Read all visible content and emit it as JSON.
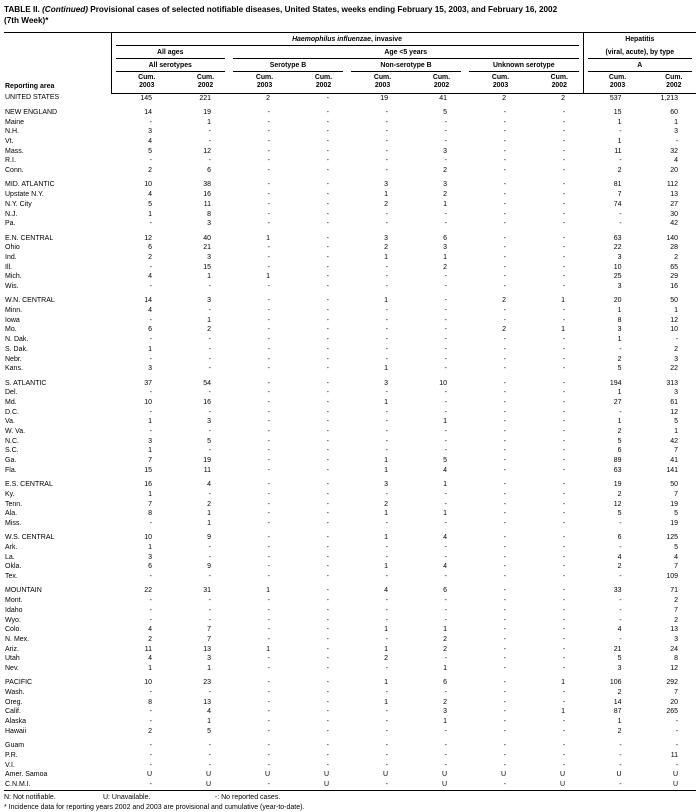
{
  "title": {
    "label": "TABLE II.",
    "continued": "(Continued)",
    "text": "Provisional cases of selected notifiable diseases, United States, weeks ending February 15, 2003, and February 16, 2002",
    "week": "(7th Week)*"
  },
  "header": {
    "reporting_area": "Reporting area",
    "hi_group_italic": "Haemophilus influenzae",
    "hi_group_rest": ", invasive",
    "hep_line1": "Hepatitis",
    "hep_line2": "(viral, acute), by type",
    "all_ages": "All ages",
    "age_under5": "Age <5 years",
    "all_serotypes": "All serotypes",
    "serotype_b": "Serotype B",
    "non_serotype_b": "Non-serotype B",
    "unknown_serotype": "Unknown serotype",
    "hep_a": "A",
    "cum": "Cum.",
    "year_2003": "2003",
    "year_2002": "2002"
  },
  "sections": [
    {
      "rows": [
        {
          "area": "UNITED STATES",
          "v": [
            "145",
            "221",
            "2",
            "-",
            "19",
            "41",
            "2",
            "2",
            "537",
            "1,213"
          ]
        }
      ]
    },
    {
      "rows": [
        {
          "area": "NEW ENGLAND",
          "v": [
            "14",
            "19",
            "-",
            "-",
            "-",
            "5",
            "-",
            "-",
            "15",
            "60"
          ]
        },
        {
          "area": "Maine",
          "v": [
            "-",
            "1",
            "-",
            "-",
            "-",
            "-",
            "-",
            "-",
            "1",
            "1"
          ]
        },
        {
          "area": "N.H.",
          "v": [
            "3",
            "-",
            "-",
            "-",
            "-",
            "-",
            "-",
            "-",
            "-",
            "3"
          ]
        },
        {
          "area": "Vt.",
          "v": [
            "4",
            "-",
            "-",
            "-",
            "-",
            "-",
            "-",
            "-",
            "1",
            "-"
          ]
        },
        {
          "area": "Mass.",
          "v": [
            "5",
            "12",
            "-",
            "-",
            "-",
            "3",
            "-",
            "-",
            "11",
            "32"
          ]
        },
        {
          "area": "R.I.",
          "v": [
            "-",
            "-",
            "-",
            "-",
            "-",
            "-",
            "-",
            "-",
            "-",
            "4"
          ]
        },
        {
          "area": "Conn.",
          "v": [
            "2",
            "6",
            "-",
            "-",
            "-",
            "2",
            "-",
            "-",
            "2",
            "20"
          ]
        }
      ]
    },
    {
      "rows": [
        {
          "area": "MID. ATLANTIC",
          "v": [
            "10",
            "38",
            "-",
            "-",
            "3",
            "3",
            "-",
            "-",
            "81",
            "112"
          ]
        },
        {
          "area": "Upstate N.Y.",
          "v": [
            "4",
            "16",
            "-",
            "-",
            "1",
            "2",
            "-",
            "-",
            "7",
            "13"
          ]
        },
        {
          "area": "N.Y. City",
          "v": [
            "5",
            "11",
            "-",
            "-",
            "2",
            "1",
            "-",
            "-",
            "74",
            "27"
          ]
        },
        {
          "area": "N.J.",
          "v": [
            "1",
            "8",
            "-",
            "-",
            "-",
            "-",
            "-",
            "-",
            "-",
            "30"
          ]
        },
        {
          "area": "Pa.",
          "v": [
            "-",
            "3",
            "-",
            "-",
            "-",
            "-",
            "-",
            "-",
            "-",
            "42"
          ]
        }
      ]
    },
    {
      "rows": [
        {
          "area": "E.N. CENTRAL",
          "v": [
            "12",
            "40",
            "1",
            "-",
            "3",
            "6",
            "-",
            "-",
            "63",
            "140"
          ]
        },
        {
          "area": "Ohio",
          "v": [
            "6",
            "21",
            "-",
            "-",
            "2",
            "3",
            "-",
            "-",
            "22",
            "28"
          ]
        },
        {
          "area": "Ind.",
          "v": [
            "2",
            "3",
            "-",
            "-",
            "1",
            "1",
            "-",
            "-",
            "3",
            "2"
          ]
        },
        {
          "area": "Ill.",
          "v": [
            "-",
            "15",
            "-",
            "-",
            "-",
            "2",
            "-",
            "-",
            "10",
            "65"
          ]
        },
        {
          "area": "Mich.",
          "v": [
            "4",
            "1",
            "1",
            "-",
            "-",
            "-",
            "-",
            "-",
            "25",
            "29"
          ]
        },
        {
          "area": "Wis.",
          "v": [
            "-",
            "-",
            "-",
            "-",
            "-",
            "-",
            "-",
            "-",
            "3",
            "16"
          ]
        }
      ]
    },
    {
      "rows": [
        {
          "area": "W.N. CENTRAL",
          "v": [
            "14",
            "3",
            "-",
            "-",
            "1",
            "-",
            "2",
            "1",
            "20",
            "50"
          ]
        },
        {
          "area": "Minn.",
          "v": [
            "4",
            "-",
            "-",
            "-",
            "-",
            "-",
            "-",
            "-",
            "1",
            "1"
          ]
        },
        {
          "area": "Iowa",
          "v": [
            "-",
            "1",
            "-",
            "-",
            "-",
            "-",
            "-",
            "-",
            "8",
            "12"
          ]
        },
        {
          "area": "Mo.",
          "v": [
            "6",
            "2",
            "-",
            "-",
            "-",
            "-",
            "2",
            "1",
            "3",
            "10"
          ]
        },
        {
          "area": "N. Dak.",
          "v": [
            "-",
            "-",
            "-",
            "-",
            "-",
            "-",
            "-",
            "-",
            "1",
            "-"
          ]
        },
        {
          "area": "S. Dak.",
          "v": [
            "1",
            "-",
            "-",
            "-",
            "-",
            "-",
            "-",
            "-",
            "-",
            "2"
          ]
        },
        {
          "area": "Nebr.",
          "v": [
            "-",
            "-",
            "-",
            "-",
            "-",
            "-",
            "-",
            "-",
            "2",
            "3"
          ]
        },
        {
          "area": "Kans.",
          "v": [
            "3",
            "-",
            "-",
            "-",
            "1",
            "-",
            "-",
            "-",
            "5",
            "22"
          ]
        }
      ]
    },
    {
      "rows": [
        {
          "area": "S. ATLANTIC",
          "v": [
            "37",
            "54",
            "-",
            "-",
            "3",
            "10",
            "-",
            "-",
            "194",
            "313"
          ]
        },
        {
          "area": "Del.",
          "v": [
            "-",
            "-",
            "-",
            "-",
            "-",
            "-",
            "-",
            "-",
            "1",
            "3"
          ]
        },
        {
          "area": "Md.",
          "v": [
            "10",
            "16",
            "-",
            "-",
            "1",
            "-",
            "-",
            "-",
            "27",
            "61"
          ]
        },
        {
          "area": "D.C.",
          "v": [
            "-",
            "-",
            "-",
            "-",
            "-",
            "-",
            "-",
            "-",
            "-",
            "12"
          ]
        },
        {
          "area": "Va.",
          "v": [
            "1",
            "3",
            "-",
            "-",
            "-",
            "1",
            "-",
            "-",
            "1",
            "5"
          ]
        },
        {
          "area": "W. Va.",
          "v": [
            "-",
            "-",
            "-",
            "-",
            "-",
            "-",
            "-",
            "-",
            "2",
            "1"
          ]
        },
        {
          "area": "N.C.",
          "v": [
            "3",
            "5",
            "-",
            "-",
            "-",
            "-",
            "-",
            "-",
            "5",
            "42"
          ]
        },
        {
          "area": "S.C.",
          "v": [
            "1",
            "-",
            "-",
            "-",
            "-",
            "-",
            "-",
            "-",
            "6",
            "7"
          ]
        },
        {
          "area": "Ga.",
          "v": [
            "7",
            "19",
            "-",
            "-",
            "1",
            "5",
            "-",
            "-",
            "89",
            "41"
          ]
        },
        {
          "area": "Fla.",
          "v": [
            "15",
            "11",
            "-",
            "-",
            "1",
            "4",
            "-",
            "-",
            "63",
            "141"
          ]
        }
      ]
    },
    {
      "rows": [
        {
          "area": "E.S. CENTRAL",
          "v": [
            "16",
            "4",
            "-",
            "-",
            "3",
            "1",
            "-",
            "-",
            "19",
            "50"
          ]
        },
        {
          "area": "Ky.",
          "v": [
            "1",
            "-",
            "-",
            "-",
            "-",
            "-",
            "-",
            "-",
            "2",
            "7"
          ]
        },
        {
          "area": "Tenn.",
          "v": [
            "7",
            "2",
            "-",
            "-",
            "2",
            "-",
            "-",
            "-",
            "12",
            "19"
          ]
        },
        {
          "area": "Ala.",
          "v": [
            "8",
            "1",
            "-",
            "-",
            "1",
            "1",
            "-",
            "-",
            "5",
            "5"
          ]
        },
        {
          "area": "Miss.",
          "v": [
            "-",
            "1",
            "-",
            "-",
            "-",
            "-",
            "-",
            "-",
            "-",
            "19"
          ]
        }
      ]
    },
    {
      "rows": [
        {
          "area": "W.S. CENTRAL",
          "v": [
            "10",
            "9",
            "-",
            "-",
            "1",
            "4",
            "-",
            "-",
            "6",
            "125"
          ]
        },
        {
          "area": "Ark.",
          "v": [
            "1",
            "-",
            "-",
            "-",
            "-",
            "-",
            "-",
            "-",
            "-",
            "5"
          ]
        },
        {
          "area": "La.",
          "v": [
            "3",
            "-",
            "-",
            "-",
            "-",
            "-",
            "-",
            "-",
            "4",
            "4"
          ]
        },
        {
          "area": "Okla.",
          "v": [
            "6",
            "9",
            "-",
            "-",
            "1",
            "4",
            "-",
            "-",
            "2",
            "7"
          ]
        },
        {
          "area": "Tex.",
          "v": [
            "-",
            "-",
            "-",
            "-",
            "-",
            "-",
            "-",
            "-",
            "-",
            "109"
          ]
        }
      ]
    },
    {
      "rows": [
        {
          "area": "MOUNTAIN",
          "v": [
            "22",
            "31",
            "1",
            "-",
            "4",
            "6",
            "-",
            "-",
            "33",
            "71"
          ]
        },
        {
          "area": "Mont.",
          "v": [
            "-",
            "-",
            "-",
            "-",
            "-",
            "-",
            "-",
            "-",
            "-",
            "2"
          ]
        },
        {
          "area": "Idaho",
          "v": [
            "-",
            "-",
            "-",
            "-",
            "-",
            "-",
            "-",
            "-",
            "-",
            "7"
          ]
        },
        {
          "area": "Wyo.",
          "v": [
            "-",
            "-",
            "-",
            "-",
            "-",
            "-",
            "-",
            "-",
            "-",
            "2"
          ]
        },
        {
          "area": "Colo.",
          "v": [
            "4",
            "7",
            "-",
            "-",
            "1",
            "1",
            "-",
            "-",
            "4",
            "13"
          ]
        },
        {
          "area": "N. Mex.",
          "v": [
            "2",
            "7",
            "-",
            "-",
            "-",
            "2",
            "-",
            "-",
            "-",
            "3"
          ]
        },
        {
          "area": "Ariz.",
          "v": [
            "11",
            "13",
            "1",
            "-",
            "1",
            "2",
            "-",
            "-",
            "21",
            "24"
          ]
        },
        {
          "area": "Utah",
          "v": [
            "4",
            "3",
            "-",
            "-",
            "2",
            "-",
            "-",
            "-",
            "5",
            "8"
          ]
        },
        {
          "area": "Nev.",
          "v": [
            "1",
            "1",
            "-",
            "-",
            "-",
            "1",
            "-",
            "-",
            "3",
            "12"
          ]
        }
      ]
    },
    {
      "rows": [
        {
          "area": "PACIFIC",
          "v": [
            "10",
            "23",
            "-",
            "-",
            "1",
            "6",
            "-",
            "1",
            "106",
            "292"
          ]
        },
        {
          "area": "Wash.",
          "v": [
            "-",
            "-",
            "-",
            "-",
            "-",
            "-",
            "-",
            "-",
            "2",
            "7"
          ]
        },
        {
          "area": "Oreg.",
          "v": [
            "8",
            "13",
            "-",
            "-",
            "1",
            "2",
            "-",
            "-",
            "14",
            "20"
          ]
        },
        {
          "area": "Calif.",
          "v": [
            "-",
            "4",
            "-",
            "-",
            "-",
            "3",
            "-",
            "1",
            "87",
            "265"
          ]
        },
        {
          "area": "Alaska",
          "v": [
            "-",
            "1",
            "-",
            "-",
            "-",
            "1",
            "-",
            "-",
            "1",
            "-"
          ]
        },
        {
          "area": "Hawaii",
          "v": [
            "2",
            "5",
            "-",
            "-",
            "-",
            "-",
            "-",
            "-",
            "2",
            "-"
          ]
        }
      ]
    },
    {
      "rows": [
        {
          "area": "Guam",
          "v": [
            "-",
            "-",
            "-",
            "-",
            "-",
            "-",
            "-",
            "-",
            "-",
            "-"
          ]
        },
        {
          "area": "P.R.",
          "v": [
            "-",
            "-",
            "-",
            "-",
            "-",
            "-",
            "-",
            "-",
            "-",
            "11"
          ]
        },
        {
          "area": "V.I.",
          "v": [
            "-",
            "-",
            "-",
            "-",
            "-",
            "-",
            "-",
            "-",
            "-",
            "-"
          ]
        },
        {
          "area": "Amer. Samoa",
          "v": [
            "U",
            "U",
            "U",
            "U",
            "U",
            "U",
            "U",
            "U",
            "U",
            "U"
          ]
        },
        {
          "area": "C.N.M.I.",
          "v": [
            "-",
            "U",
            "-",
            "U",
            "-",
            "U",
            "-",
            "U",
            "-",
            "U"
          ]
        }
      ]
    }
  ],
  "footnotes": {
    "not_notifiable": "N: Not notifiable.",
    "unavailable": "U: Unavailable.",
    "no_cases": "-: No reported cases.",
    "incidence": "* Incidence data for reporting years 2002 and 2003 are provisional and cumulative (year-to-date)."
  }
}
